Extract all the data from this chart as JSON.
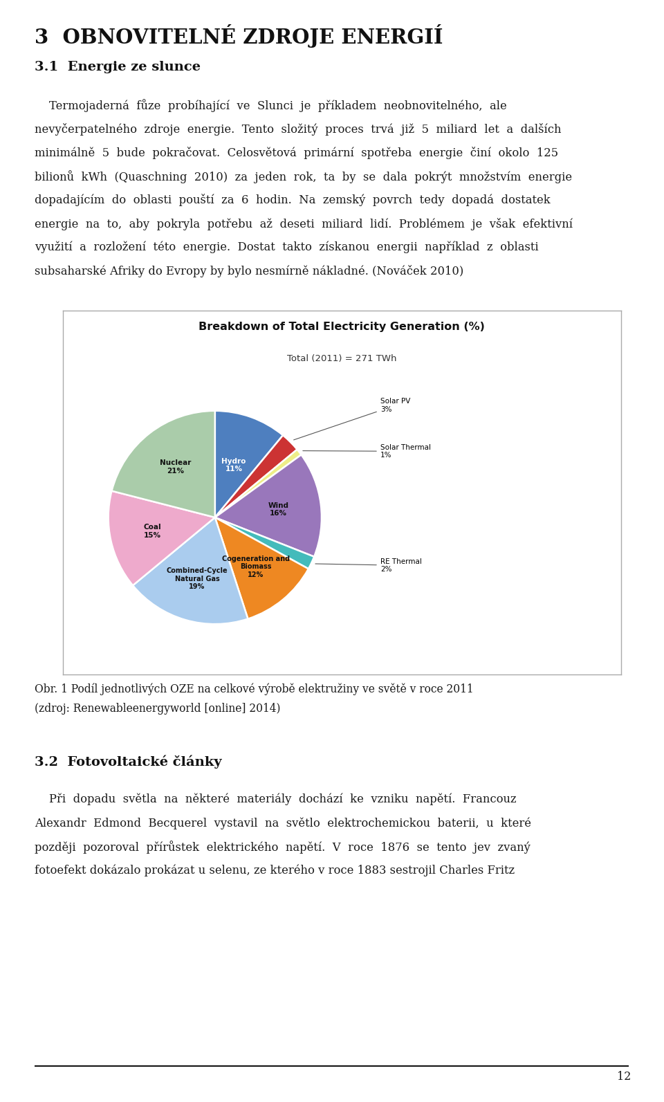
{
  "page_title": "3  OBNOVITELNÉ ZDROJE ENERGIÍ",
  "section_title": "3.1  Energie ze slunce",
  "chart_title": "Breakdown of Total Electricity Generation (%)",
  "chart_subtitle": "Total (2011) = 271 TWh",
  "pie_slices": [
    {
      "label": "Hydro\n11%",
      "value": 11,
      "color": "#4E7FBF"
    },
    {
      "label": "Solar PV\n3%",
      "value": 3,
      "color": "#CC3333"
    },
    {
      "label": "Solar Thermal\n1%",
      "value": 1,
      "color": "#EEEE88"
    },
    {
      "label": "Wind\n16%",
      "value": 16,
      "color": "#9977BB"
    },
    {
      "label": "RE Thermal\n2%",
      "value": 2,
      "color": "#44BBBB"
    },
    {
      "label": "Cogeneration and\nBiomass\n12%",
      "value": 12,
      "color": "#EE8822"
    },
    {
      "label": "Combined-Cycle\nNatural Gas\n19%",
      "value": 19,
      "color": "#AACCEE"
    },
    {
      "label": "Coal\n15%",
      "value": 15,
      "color": "#EEAACC"
    },
    {
      "label": "Nuclear\n21%",
      "value": 21,
      "color": "#AACCAA"
    }
  ],
  "caption_line1": "Obr. 1 Podíl jednotlivých OZE na celkové výrobě elektružiny ve světě v roce 2011",
  "caption_line2": "(zdroj: Renewableenergyworld [online] 2014)",
  "section2_title": "3.2  Fotovoltaické články",
  "page_number": "12",
  "background_color": "#ffffff",
  "text_color": "#1a1a1a",
  "border_color": "#aaaaaa"
}
